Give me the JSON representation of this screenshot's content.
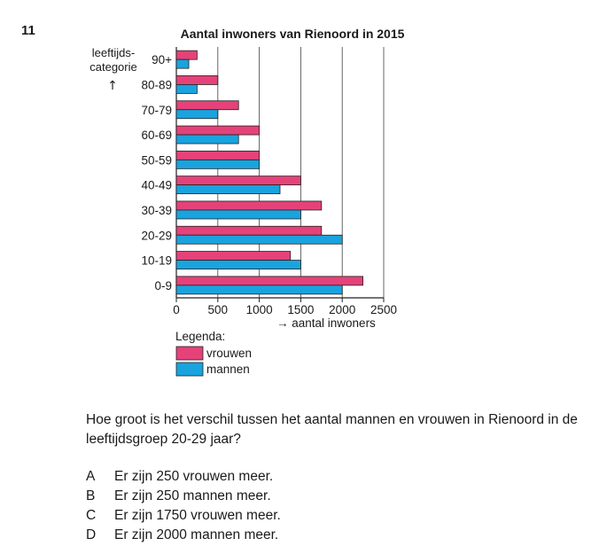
{
  "question": {
    "number": "11",
    "text": "Hoe groot is het verschil tussen het aantal mannen en vrouwen in Rienoord in de leeftijdsgroep 20-29 jaar?",
    "options": [
      {
        "letter": "A",
        "text": "Er zijn 250 vrouwen meer."
      },
      {
        "letter": "B",
        "text": "Er zijn 250 mannen meer."
      },
      {
        "letter": "C",
        "text": "Er zijn 1750 vrouwen meer."
      },
      {
        "letter": "D",
        "text": "Er zijn 2000 mannen meer."
      }
    ]
  },
  "chart_data": {
    "type": "bar",
    "orientation": "horizontal",
    "title": "Aantal inwoners van Rienoord in 2015",
    "ylabel_line1": "leeftijds-",
    "ylabel_line2": "categorie",
    "ylabel_arrow": "↑",
    "xlabel": "→ aantal inwoners",
    "categories": [
      "90+",
      "80-89",
      "70-79",
      "60-69",
      "50-59",
      "40-49",
      "30-39",
      "20-29",
      "10-19",
      "0-9"
    ],
    "series": [
      {
        "name": "vrouwen",
        "color": "#e5427a",
        "values": [
          250,
          500,
          750,
          1000,
          1000,
          1500,
          1750,
          1750,
          1375,
          2250
        ]
      },
      {
        "name": "mannen",
        "color": "#1aa3df",
        "values": [
          150,
          250,
          500,
          750,
          1000,
          1250,
          1500,
          2000,
          1500,
          2000
        ]
      }
    ],
    "xticks": [
      "0",
      "500",
      "1000",
      "1500",
      "2000",
      "2500"
    ],
    "xlim": [
      0,
      2500
    ],
    "grid": true,
    "legend_title": "Legenda:",
    "legend_placement": "bottom-left"
  }
}
